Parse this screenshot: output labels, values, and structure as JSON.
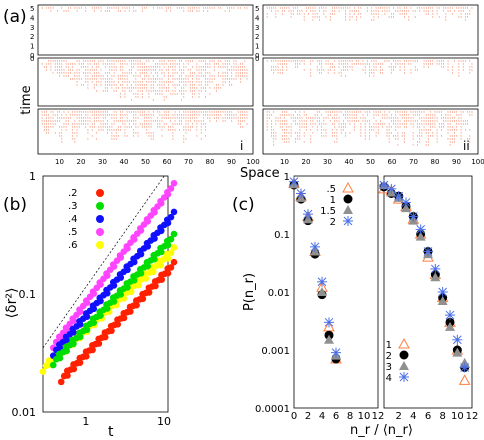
{
  "panel_labels": {
    "a": "(a)",
    "b": "(b)",
    "c": "(c)"
  },
  "colors": {
    "red": "#ff2000",
    "green": "#00dd00",
    "blue": "#1010ff",
    "magenta": "#ff44ff",
    "yellow": "#ffff00",
    "gray": "#909090",
    "black": "#000000",
    "orange": "#ff7f40",
    "lightblue": "#4a6fe8",
    "pink": "#f7a48c"
  },
  "chart_data": [
    {
      "id": "a",
      "type": "heatmap",
      "ylabel": "time",
      "xlabel": "Space",
      "xticks": [
        "10",
        "20",
        "30",
        "40",
        "50",
        "60",
        "70",
        "80",
        "90",
        "100"
      ],
      "yticks": [
        "0",
        "1",
        "2",
        "3",
        "4",
        "5"
      ],
      "subpanel_labels": [
        "i",
        "ii"
      ],
      "xlim": [
        0,
        100
      ],
      "ylim": [
        0,
        5
      ]
    },
    {
      "id": "b",
      "type": "scatter",
      "scale": "log-log",
      "xlabel": "t",
      "ylabel": "⟨δr²⟩",
      "xlim": [
        0.3,
        10
      ],
      "ylim": [
        0.01,
        1
      ],
      "xticks": [
        "1",
        "10"
      ],
      "yticks": [
        "1",
        "0.1",
        "0.01"
      ],
      "series": [
        {
          "name": ".2",
          "color": "#ff2000",
          "t_range": [
            0.5,
            10
          ],
          "msd_start": 0.018,
          "msd_end": 0.15
        },
        {
          "name": ".3",
          "color": "#00dd00",
          "t_range": [
            0.4,
            10
          ],
          "msd_start": 0.025,
          "msd_end": 0.26
        },
        {
          "name": ".4",
          "color": "#1010ff",
          "t_range": [
            0.4,
            10
          ],
          "msd_start": 0.03,
          "msd_end": 0.4
        },
        {
          "name": ".5",
          "color": "#ff44ff",
          "t_range": [
            0.4,
            10
          ],
          "msd_start": 0.035,
          "msd_end": 0.7
        },
        {
          "name": ".6",
          "color": "#ffff00",
          "t_range": [
            0.3,
            10
          ],
          "msd_start": 0.022,
          "msd_end": 0.2
        }
      ]
    },
    {
      "id": "c-left",
      "type": "scatter",
      "scale": "semilog-y",
      "xlabel": "n_r / ⟨n_r⟩",
      "ylabel": "P(n_r)",
      "xlim": [
        0,
        12
      ],
      "ylim": [
        0.0001,
        1
      ],
      "xticks": [
        "0",
        "2",
        "4",
        "6",
        "8",
        "10",
        "12"
      ],
      "yticks": [
        "1",
        "0.1",
        "0.01",
        "0.001",
        "0.0001"
      ],
      "series": [
        {
          "name": ".5",
          "marker": "triangle-open",
          "color": "#ff7f40",
          "x": [
            0,
            1,
            2,
            3,
            4,
            5,
            6
          ],
          "y": [
            0.75,
            0.45,
            0.2,
            0.05,
            0.012,
            0.0025,
            0.0007
          ]
        },
        {
          "name": "1",
          "marker": "circle",
          "color": "#000000",
          "x": [
            0,
            1,
            2,
            3,
            4,
            5,
            6
          ],
          "y": [
            0.7,
            0.4,
            0.17,
            0.045,
            0.009,
            0.0018,
            0.0007
          ]
        },
        {
          "name": "1.5",
          "marker": "triangle",
          "color": "#909090",
          "x": [
            0,
            1,
            2,
            3,
            4,
            5,
            6
          ],
          "y": [
            0.72,
            0.42,
            0.18,
            0.05,
            0.01,
            0.0015,
            0.0008
          ]
        },
        {
          "name": "2",
          "marker": "star",
          "color": "#4a6fe8",
          "x": [
            0,
            1,
            2,
            3,
            4,
            5,
            6
          ],
          "y": [
            0.8,
            0.5,
            0.22,
            0.06,
            0.015,
            0.003,
            0.0009
          ]
        }
      ]
    },
    {
      "id": "c-right",
      "type": "scatter",
      "scale": "semilog-y",
      "xlim": [
        0,
        12
      ],
      "ylim": [
        0.0001,
        1
      ],
      "xticks": [
        "2",
        "4",
        "6",
        "8",
        "10",
        "12"
      ],
      "series": [
        {
          "name": "1",
          "marker": "triangle-open",
          "color": "#ff7f40",
          "x": [
            0,
            1,
            2,
            3,
            4,
            5,
            6,
            7,
            8,
            9,
            10,
            11
          ],
          "y": [
            0.6,
            0.55,
            0.4,
            0.3,
            0.18,
            0.1,
            0.04,
            0.02,
            0.008,
            0.003,
            0.001,
            0.0003
          ]
        },
        {
          "name": "2",
          "marker": "circle",
          "color": "#000000",
          "x": [
            0,
            1,
            2,
            3,
            4,
            5,
            6,
            7,
            8,
            9,
            10,
            11
          ],
          "y": [
            0.65,
            0.5,
            0.45,
            0.3,
            0.2,
            0.1,
            0.05,
            0.02,
            0.008,
            0.003,
            0.001,
            0.0005
          ]
        },
        {
          "name": "3",
          "marker": "triangle",
          "color": "#909090",
          "x": [
            0,
            1,
            2,
            3,
            4,
            5,
            6,
            7,
            8,
            9,
            10,
            11
          ],
          "y": [
            0.7,
            0.52,
            0.42,
            0.28,
            0.17,
            0.09,
            0.045,
            0.018,
            0.007,
            0.0025,
            0.0009,
            0.0006
          ]
        },
        {
          "name": "4",
          "marker": "star",
          "color": "#4a6fe8",
          "x": [
            0,
            1,
            2,
            3,
            4,
            5,
            6,
            7,
            8,
            9,
            10,
            11
          ],
          "y": [
            0.7,
            0.6,
            0.45,
            0.35,
            0.2,
            0.12,
            0.05,
            0.025,
            0.01,
            0.004,
            0.0015,
            0.0005
          ]
        }
      ]
    }
  ]
}
